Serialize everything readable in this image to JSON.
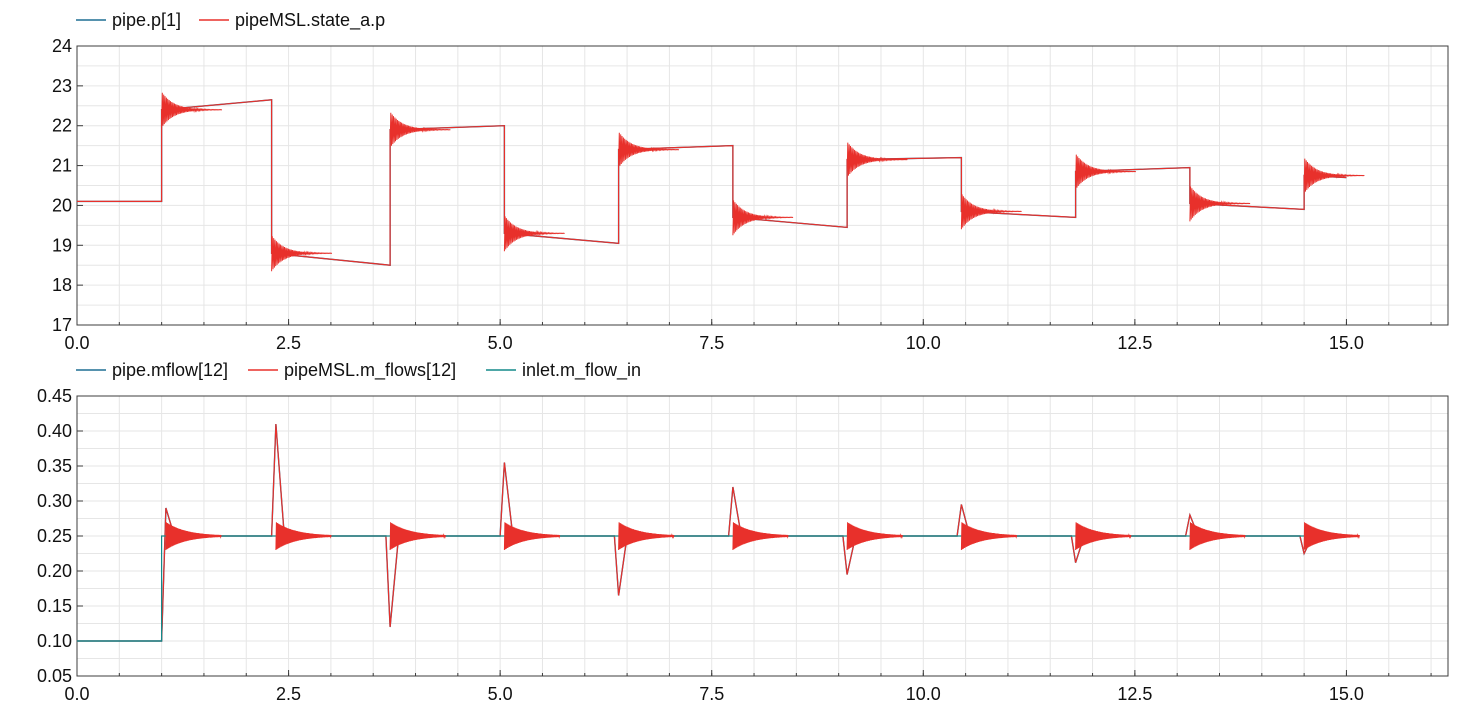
{
  "chart_data": [
    {
      "type": "line",
      "title": "",
      "xlabel": "",
      "ylabel": "",
      "xlim": [
        0,
        16.2
      ],
      "ylim": [
        17,
        24
      ],
      "grid": true,
      "legend_position": "top-left",
      "x_ticks": [
        0,
        2.5,
        5,
        7.5,
        10,
        12.5,
        15
      ],
      "x_tick_labels": [
        "0.0",
        "2.5",
        "5.0",
        "7.5",
        "10.0",
        "12.5",
        "15.0"
      ],
      "y_ticks": [
        17,
        18,
        19,
        20,
        21,
        22,
        23,
        24
      ],
      "y_tick_labels": [
        "17",
        "18",
        "19",
        "20",
        "21",
        "22",
        "23",
        "24"
      ],
      "series": [
        {
          "name": "pipe.p[1]",
          "color": "#1f6f94",
          "x": [
            0,
            1,
            1,
            2.3,
            2.3,
            3.7,
            3.7,
            5.05,
            5.05,
            6.4,
            6.4,
            7.75,
            7.75,
            9.1,
            9.1,
            10.45,
            10.45,
            11.8,
            11.8,
            13.15,
            13.15,
            14.5,
            14.5,
            15
          ],
          "y": [
            20.1,
            20.1,
            22.4,
            22.65,
            18.8,
            18.5,
            21.9,
            22.0,
            19.3,
            19.05,
            21.4,
            21.5,
            19.7,
            19.45,
            21.15,
            21.2,
            19.85,
            19.7,
            20.85,
            20.95,
            20.05,
            19.9,
            20.75,
            20.7
          ]
        },
        {
          "name": "pipeMSL.state_a.p",
          "color": "#e8302b",
          "x": [
            0,
            1,
            1,
            2.3,
            2.3,
            3.7,
            3.7,
            5.05,
            5.05,
            6.4,
            6.4,
            7.75,
            7.75,
            9.1,
            9.1,
            10.45,
            10.45,
            11.8,
            11.8,
            13.15,
            13.15,
            14.5,
            14.5,
            15
          ],
          "y": [
            20.1,
            20.1,
            22.4,
            22.65,
            18.8,
            18.5,
            21.9,
            22.0,
            19.3,
            19.05,
            21.4,
            21.5,
            19.7,
            19.45,
            21.15,
            21.2,
            19.85,
            19.7,
            20.85,
            20.95,
            20.05,
            19.9,
            20.75,
            20.7
          ]
        }
      ]
    },
    {
      "type": "line",
      "title": "",
      "xlabel": "",
      "ylabel": "",
      "xlim": [
        0,
        16.2
      ],
      "ylim": [
        0.05,
        0.45
      ],
      "grid": true,
      "legend_position": "top-left",
      "x_ticks": [
        0,
        2.5,
        5,
        7.5,
        10,
        12.5,
        15
      ],
      "x_tick_labels": [
        "0.0",
        "2.5",
        "5.0",
        "7.5",
        "10.0",
        "12.5",
        "15.0"
      ],
      "y_ticks": [
        0.05,
        0.1,
        0.15,
        0.2,
        0.25,
        0.3,
        0.35,
        0.4,
        0.45
      ],
      "y_tick_labels": [
        "0.05",
        "0.10",
        "0.15",
        "0.20",
        "0.25",
        "0.30",
        "0.35",
        "0.40",
        "0.45"
      ],
      "series": [
        {
          "name": "pipe.mflow[12]",
          "color": "#1f6f94",
          "x": [
            0,
            1,
            1.05,
            1.15,
            2.3,
            2.35,
            2.45,
            3.65,
            3.7,
            3.8,
            5.0,
            5.05,
            5.15,
            6.35,
            6.4,
            6.5,
            7.7,
            7.75,
            7.85,
            9.05,
            9.1,
            9.2,
            10.4,
            10.45,
            10.55,
            11.75,
            11.8,
            11.9,
            13.1,
            13.15,
            13.25,
            14.45,
            14.5,
            14.6,
            15
          ],
          "y": [
            0.1,
            0.1,
            0.29,
            0.25,
            0.25,
            0.41,
            0.25,
            0.25,
            0.12,
            0.25,
            0.25,
            0.355,
            0.25,
            0.25,
            0.165,
            0.25,
            0.25,
            0.32,
            0.25,
            0.25,
            0.195,
            0.25,
            0.25,
            0.295,
            0.25,
            0.25,
            0.212,
            0.25,
            0.25,
            0.28,
            0.25,
            0.25,
            0.225,
            0.25,
            0.25
          ]
        },
        {
          "name": "pipeMSL.m_flows[12]",
          "color": "#e8302b",
          "x": [
            0,
            1,
            1.05,
            1.15,
            2.3,
            2.35,
            2.45,
            3.65,
            3.7,
            3.8,
            5.0,
            5.05,
            5.15,
            6.35,
            6.4,
            6.5,
            7.7,
            7.75,
            7.85,
            9.05,
            9.1,
            9.2,
            10.4,
            10.45,
            10.55,
            11.75,
            11.8,
            11.9,
            13.1,
            13.15,
            13.25,
            14.45,
            14.5,
            14.6,
            15
          ],
          "y": [
            0.1,
            0.1,
            0.29,
            0.25,
            0.25,
            0.41,
            0.25,
            0.25,
            0.12,
            0.25,
            0.25,
            0.355,
            0.25,
            0.25,
            0.165,
            0.25,
            0.25,
            0.32,
            0.25,
            0.25,
            0.195,
            0.25,
            0.25,
            0.295,
            0.25,
            0.25,
            0.212,
            0.25,
            0.25,
            0.28,
            0.25,
            0.25,
            0.225,
            0.25,
            0.25
          ]
        },
        {
          "name": "inlet.m_flow_in",
          "color": "#138a8a",
          "x": [
            0,
            1,
            1,
            15
          ],
          "y": [
            0.1,
            0.1,
            0.25,
            0.25
          ]
        }
      ]
    }
  ]
}
